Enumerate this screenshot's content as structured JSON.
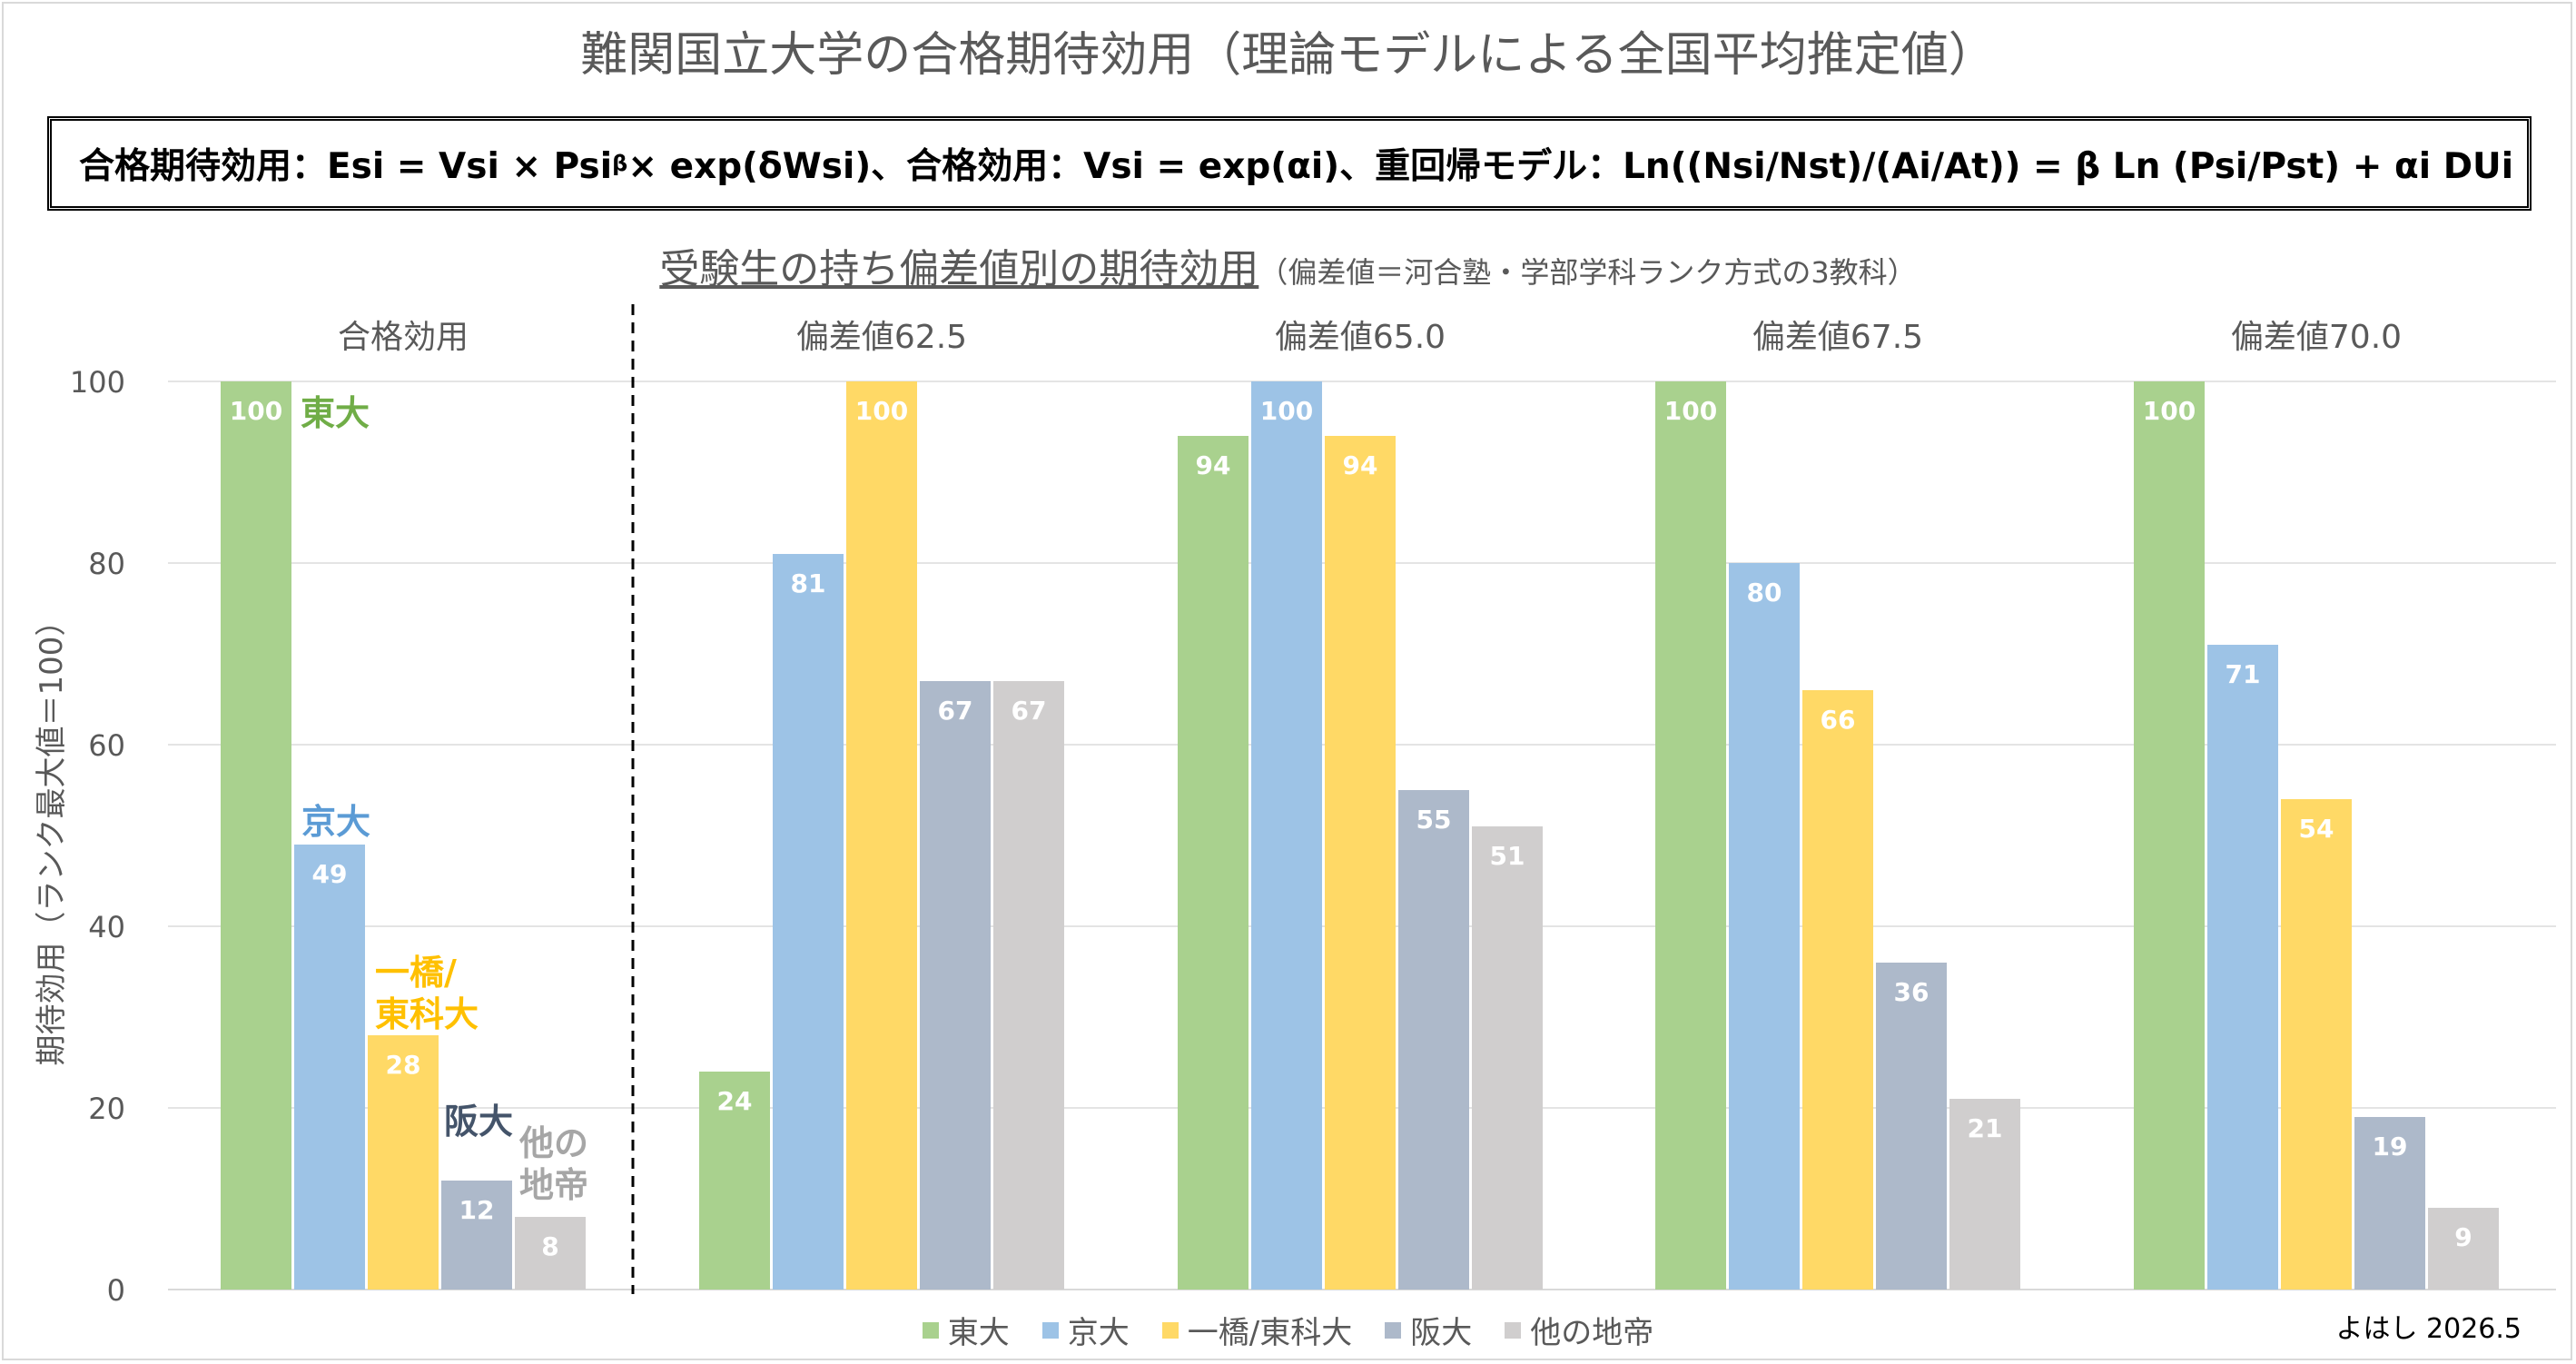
{
  "title": "難関国立大学の合格期待効用（理論モデルによる全国平均推定値）",
  "formula": "合格期待効用：Esi = Vsi × Psi^β × exp(δWsi)、合格効用：Vsi = exp(αi)、重回帰モデル：Ln((Nsi/Nst)/(Ai/At)) = β Ln (Psi/Pst) + αi DUi ＋ δ Wsi + ε",
  "formula_parts": {
    "a": "合格期待効用：Esi = Vsi × Psi",
    "sup": "β",
    "b": " × exp(δWsi)、合格効用：Vsi = exp(αi)、重回帰モデル：Ln((Nsi/Nst)/(Ai/At)) = β Ln (Psi/Pst) + αi DUi ＋ δ Wsi + ε"
  },
  "subtitle": "受験生の持ち偏差値別の期待効用",
  "subtitle_note": "（偏差値＝河合塾・学部学科ランク方式の3教科）",
  "signature": "よはし 2026.5",
  "colors": {
    "東大": "#a9d18e",
    "京大": "#9dc3e6",
    "一橋/東科大": "#ffd966",
    "阪大": "#adb9ca",
    "他の地帝": "#d0cece"
  },
  "label_colors": {
    "東大": "#70ad47",
    "京大": "#5b9bd5",
    "一橋/東科大": "#ffc000",
    "阪大": "#44546a",
    "他の地帝": "#a6a6a6"
  },
  "chart_data": {
    "type": "bar",
    "ylabel": "期待効用（ランク最大値＝100）",
    "ylim": [
      0,
      100
    ],
    "yticks": [
      0,
      20,
      40,
      60,
      80,
      100
    ],
    "grid": true,
    "legend_position": "bottom",
    "series_names": [
      "東大",
      "京大",
      "一橋/東科大",
      "阪大",
      "他の地帝"
    ],
    "groups": [
      {
        "name": "合格効用",
        "values": [
          100,
          49,
          28,
          12,
          8
        ],
        "inline_labels": [
          "東大",
          "京大",
          "一橋/\n東科大",
          "阪大",
          "他の\n地帝"
        ]
      },
      {
        "name": "偏差値62.5",
        "values": [
          24,
          81,
          100,
          67,
          67
        ]
      },
      {
        "name": "偏差値65.0",
        "values": [
          94,
          100,
          94,
          55,
          51
        ]
      },
      {
        "name": "偏差値67.5",
        "values": [
          100,
          80,
          66,
          36,
          21
        ]
      },
      {
        "name": "偏差値70.0",
        "values": [
          100,
          71,
          54,
          19,
          9
        ]
      }
    ],
    "legend": [
      "東大",
      "京大",
      "一橋/東科大",
      "阪大",
      "他の地帝"
    ]
  }
}
